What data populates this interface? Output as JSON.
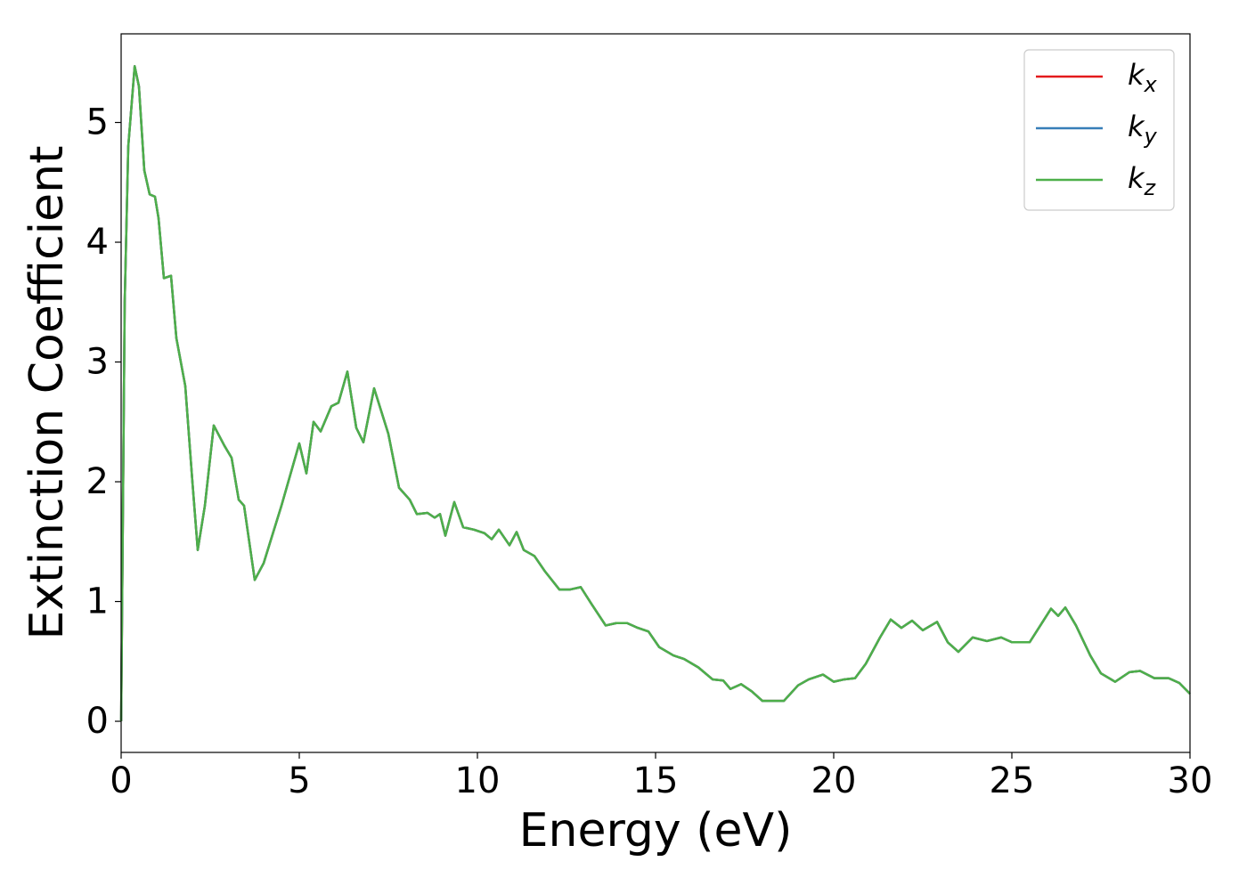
{
  "chart_data": {
    "type": "line",
    "xlabel": "Energy (eV)",
    "ylabel": "Extinction Coefficient",
    "xlim": [
      0,
      30
    ],
    "ylim": [
      -0.26,
      5.74
    ],
    "xticks": [
      0,
      5,
      10,
      15,
      20,
      25,
      30
    ],
    "yticks": [
      0,
      1,
      2,
      3,
      4,
      5
    ],
    "legend": "upper right",
    "grid": false,
    "x": [
      0,
      0.1,
      0.2,
      0.38,
      0.5,
      0.65,
      0.8,
      0.95,
      1.05,
      1.2,
      1.4,
      1.55,
      1.8,
      2.0,
      2.15,
      2.35,
      2.6,
      2.9,
      3.1,
      3.3,
      3.45,
      3.75,
      4.0,
      4.5,
      5.0,
      5.2,
      5.4,
      5.6,
      5.9,
      6.1,
      6.35,
      6.6,
      6.8,
      7.1,
      7.5,
      7.8,
      8.1,
      8.3,
      8.6,
      8.8,
      8.95,
      9.1,
      9.35,
      9.6,
      9.9,
      10.2,
      10.4,
      10.6,
      10.9,
      11.1,
      11.3,
      11.6,
      11.9,
      12.3,
      12.6,
      12.9,
      13.2,
      13.6,
      13.9,
      14.2,
      14.5,
      14.8,
      15.1,
      15.5,
      15.8,
      16.2,
      16.6,
      16.9,
      17.1,
      17.4,
      17.7,
      18.0,
      18.6,
      19.0,
      19.3,
      19.7,
      20.0,
      20.3,
      20.6,
      20.9,
      21.3,
      21.6,
      21.9,
      22.2,
      22.5,
      22.9,
      23.2,
      23.5,
      23.9,
      24.3,
      24.7,
      25.0,
      25.5,
      25.8,
      26.1,
      26.3,
      26.5,
      26.8,
      27.2,
      27.5,
      27.9,
      28.3,
      28.6,
      29.0,
      29.4,
      29.7,
      30.0
    ],
    "series": [
      {
        "name": "kx",
        "color": "#e41a1c",
        "values": [
          0,
          3.5,
          4.8,
          5.47,
          5.3,
          4.6,
          4.4,
          4.38,
          4.2,
          3.7,
          3.72,
          3.2,
          2.8,
          2.0,
          1.43,
          1.8,
          2.47,
          2.3,
          2.2,
          1.85,
          1.8,
          1.18,
          1.32,
          1.8,
          2.32,
          2.07,
          2.5,
          2.42,
          2.63,
          2.66,
          2.92,
          2.45,
          2.33,
          2.78,
          2.4,
          1.95,
          1.85,
          1.73,
          1.74,
          1.7,
          1.73,
          1.55,
          1.83,
          1.62,
          1.6,
          1.57,
          1.52,
          1.6,
          1.47,
          1.58,
          1.43,
          1.38,
          1.25,
          1.1,
          1.1,
          1.12,
          0.98,
          0.8,
          0.82,
          0.82,
          0.78,
          0.75,
          0.62,
          0.55,
          0.52,
          0.45,
          0.35,
          0.34,
          0.27,
          0.31,
          0.25,
          0.17,
          0.17,
          0.3,
          0.35,
          0.39,
          0.33,
          0.35,
          0.36,
          0.48,
          0.7,
          0.85,
          0.78,
          0.84,
          0.76,
          0.83,
          0.66,
          0.58,
          0.7,
          0.67,
          0.7,
          0.66,
          0.66,
          0.8,
          0.94,
          0.88,
          0.95,
          0.8,
          0.55,
          0.4,
          0.33,
          0.41,
          0.42,
          0.36,
          0.36,
          0.32,
          0.23
        ]
      },
      {
        "name": "ky",
        "color": "#377eb8",
        "values": [
          0,
          3.5,
          4.8,
          5.47,
          5.3,
          4.6,
          4.4,
          4.38,
          4.2,
          3.7,
          3.72,
          3.2,
          2.8,
          2.0,
          1.43,
          1.8,
          2.47,
          2.3,
          2.2,
          1.85,
          1.8,
          1.18,
          1.32,
          1.8,
          2.32,
          2.07,
          2.5,
          2.42,
          2.63,
          2.66,
          2.92,
          2.45,
          2.33,
          2.78,
          2.4,
          1.95,
          1.85,
          1.73,
          1.74,
          1.7,
          1.73,
          1.55,
          1.83,
          1.62,
          1.6,
          1.57,
          1.52,
          1.6,
          1.47,
          1.58,
          1.43,
          1.38,
          1.25,
          1.1,
          1.1,
          1.12,
          0.98,
          0.8,
          0.82,
          0.82,
          0.78,
          0.75,
          0.62,
          0.55,
          0.52,
          0.45,
          0.35,
          0.34,
          0.27,
          0.31,
          0.25,
          0.17,
          0.17,
          0.3,
          0.35,
          0.39,
          0.33,
          0.35,
          0.36,
          0.48,
          0.7,
          0.85,
          0.78,
          0.84,
          0.76,
          0.83,
          0.66,
          0.58,
          0.7,
          0.67,
          0.7,
          0.66,
          0.66,
          0.8,
          0.94,
          0.88,
          0.95,
          0.8,
          0.55,
          0.4,
          0.33,
          0.41,
          0.42,
          0.36,
          0.36,
          0.32,
          0.23
        ]
      },
      {
        "name": "kz",
        "color": "#4daf4a",
        "values": [
          0,
          3.5,
          4.8,
          5.47,
          5.3,
          4.6,
          4.4,
          4.38,
          4.2,
          3.7,
          3.72,
          3.2,
          2.8,
          2.0,
          1.43,
          1.8,
          2.47,
          2.3,
          2.2,
          1.85,
          1.8,
          1.18,
          1.32,
          1.8,
          2.32,
          2.07,
          2.5,
          2.42,
          2.63,
          2.66,
          2.92,
          2.45,
          2.33,
          2.78,
          2.4,
          1.95,
          1.85,
          1.73,
          1.74,
          1.7,
          1.73,
          1.55,
          1.83,
          1.62,
          1.6,
          1.57,
          1.52,
          1.6,
          1.47,
          1.58,
          1.43,
          1.38,
          1.25,
          1.1,
          1.1,
          1.12,
          0.98,
          0.8,
          0.82,
          0.82,
          0.78,
          0.75,
          0.62,
          0.55,
          0.52,
          0.45,
          0.35,
          0.34,
          0.27,
          0.31,
          0.25,
          0.17,
          0.17,
          0.3,
          0.35,
          0.39,
          0.33,
          0.35,
          0.36,
          0.48,
          0.7,
          0.85,
          0.78,
          0.84,
          0.76,
          0.83,
          0.66,
          0.58,
          0.7,
          0.67,
          0.7,
          0.66,
          0.66,
          0.8,
          0.94,
          0.88,
          0.95,
          0.8,
          0.55,
          0.4,
          0.33,
          0.41,
          0.42,
          0.36,
          0.36,
          0.32,
          0.23
        ]
      }
    ]
  }
}
